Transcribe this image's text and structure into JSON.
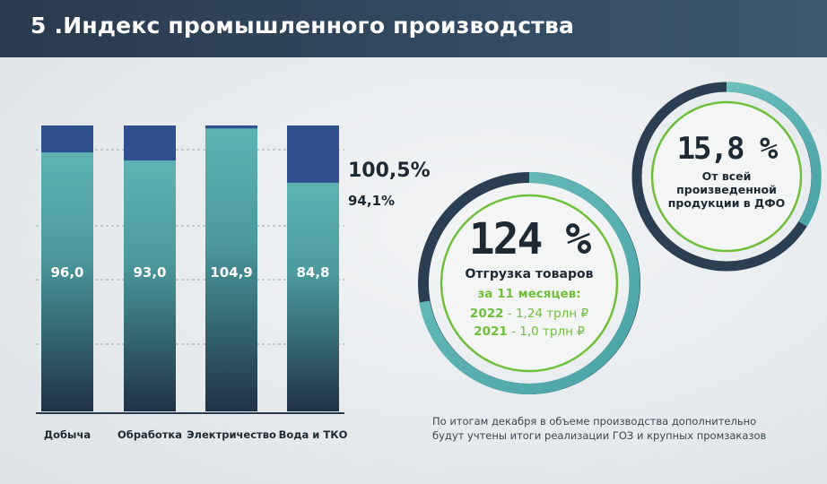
{
  "header": {
    "title": "5 .Индекс промышленного производства"
  },
  "chart_data": {
    "type": "bar",
    "categories": [
      "Добыча",
      "Обработка",
      "Электричество",
      "Вода и ТКО"
    ],
    "values": [
      96.0,
      93.0,
      104.9,
      84.8
    ],
    "value_labels": [
      "96,0",
      "93,0",
      "104,9",
      "84,8"
    ],
    "series": [
      {
        "values": [
          96.0,
          93.0,
          104.9,
          84.8
        ]
      }
    ],
    "reference_labels": [
      "100,5%",
      "94,1%"
    ],
    "grid": true,
    "colors": {
      "bar_fill": "#5fb3b3",
      "bar_dark": "#27394a",
      "bar_top": "#2f4f8f"
    }
  },
  "shipment": {
    "percent": "124 %",
    "label": "Отгрузка товаров",
    "period": "за 11 месяцев:",
    "line2022_year": "2022",
    "line2022_value": " - 1,24 трлн ₽",
    "line2021_year": "2021",
    "line2021_value": " - 1,0 трлн ₽"
  },
  "share": {
    "percent": "15,8 %",
    "line1": "От всей",
    "line2": "произведенной",
    "line3": "продукции в ДФО"
  },
  "footnote": {
    "line1": "По итогам декабря в объеме производства дополнительно",
    "line2": "будут учтены итоги реализации ГОЗ и крупных промзаказов"
  }
}
